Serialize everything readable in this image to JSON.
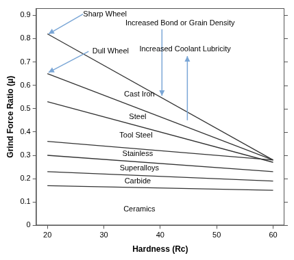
{
  "chart_data": {
    "type": "line",
    "x_label": "Hardness (Rc)",
    "y_label": "Grind Force Ratio (μ)",
    "x": [
      20,
      60
    ],
    "series": [
      {
        "values": [
          0.82,
          0.28
        ]
      },
      {
        "values": [
          0.65,
          0.28
        ]
      },
      {
        "values": [
          0.53,
          0.27
        ]
      },
      {
        "values": [
          0.36,
          0.28
        ]
      },
      {
        "values": [
          0.3,
          0.23
        ]
      },
      {
        "values": [
          0.23,
          0.19
        ]
      },
      {
        "values": [
          0.17,
          0.15
        ]
      }
    ],
    "color": "#333333",
    "marker": "none",
    "line_style": "solid",
    "xlim": [
      18,
      62
    ],
    "xticks": [
      20,
      30,
      40,
      50,
      60
    ],
    "ylim": [
      0,
      0.93
    ],
    "yticks": [
      0,
      0.1,
      0.2,
      0.3,
      0.4,
      0.5,
      0.6,
      0.7,
      0.8,
      0.9
    ],
    "grid": false,
    "annotations": [
      {
        "text": "Sharp Wheel",
        "x": 30.2,
        "y": 0.905,
        "arrow": [
          [
            26.3,
            0.905
          ],
          [
            20.2,
            0.82
          ]
        ]
      },
      {
        "text": "Dull Wheel",
        "x": 31.2,
        "y": 0.745,
        "arrow": [
          [
            27.3,
            0.745
          ],
          [
            20.2,
            0.655
          ]
        ]
      },
      {
        "text": "Increased Bond or Grain Density",
        "x": 43.5,
        "y": 0.865,
        "arrow": [
          [
            40.3,
            0.84
          ],
          [
            40.3,
            0.555
          ]
        ]
      },
      {
        "text": "Increased Coolant Lubricity",
        "x": 44.4,
        "y": 0.755,
        "arrow": [
          [
            44.8,
            0.45
          ],
          [
            44.8,
            0.725
          ]
        ]
      },
      {
        "text": "Cast Iron",
        "x": 36.3,
        "y": 0.56
      },
      {
        "text": "Steel",
        "x": 36,
        "y": 0.465
      },
      {
        "text": "Tool Steel",
        "x": 35.7,
        "y": 0.385
      },
      {
        "text": "Stainless",
        "x": 36,
        "y": 0.305
      },
      {
        "text": "Superalloys",
        "x": 36.3,
        "y": 0.245
      },
      {
        "text": "Carbide",
        "x": 36,
        "y": 0.19
      },
      {
        "text": "Ceramics",
        "x": 36.3,
        "y": 0.07
      }
    ]
  }
}
